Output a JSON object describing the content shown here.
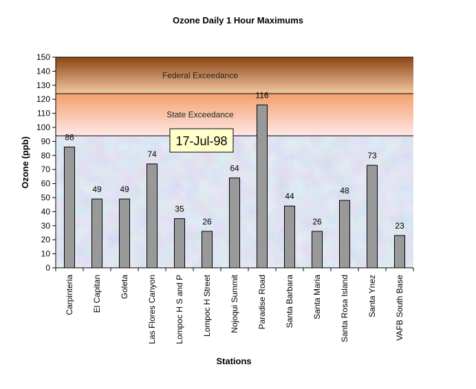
{
  "chart_data": {
    "type": "bar",
    "title": "Ozone Daily 1 Hour Maximums",
    "xlabel": "Stations",
    "ylabel": "Ozone (ppb)",
    "ylim": [
      0,
      150
    ],
    "yticks": [
      0,
      10,
      20,
      30,
      40,
      50,
      60,
      70,
      80,
      90,
      100,
      110,
      120,
      130,
      140,
      150
    ],
    "categories": [
      "Carpinteria",
      "El Capitan",
      "Goleta",
      "Las Flores Canyon",
      "Lompoc H S and P",
      "Lompoc H Street",
      "Nojoqui Summit",
      "Paradise Road",
      "Santa Barbara",
      "Santa Maria",
      "Santa Rosa Island",
      "Santa Ynez",
      "VAFB South Base"
    ],
    "values": [
      86,
      49,
      49,
      74,
      35,
      26,
      64,
      116,
      44,
      26,
      48,
      73,
      23
    ],
    "bands": [
      {
        "label": "Federal Exceedance",
        "from": 124,
        "to": 150
      },
      {
        "label": "State Exceedance",
        "from": 94,
        "to": 124
      }
    ],
    "annotation": "17-Jul-98",
    "grid": false,
    "legend": "none",
    "colors": {
      "bar": "#999999",
      "federal_top": "#8b4513",
      "federal_bottom": "#f2c8a2",
      "state_top": "#f2a06a",
      "state_bottom": "#ffe8e8",
      "plot_bg": "#c9d8ea",
      "annotation_bg": "#ffffcc"
    }
  }
}
